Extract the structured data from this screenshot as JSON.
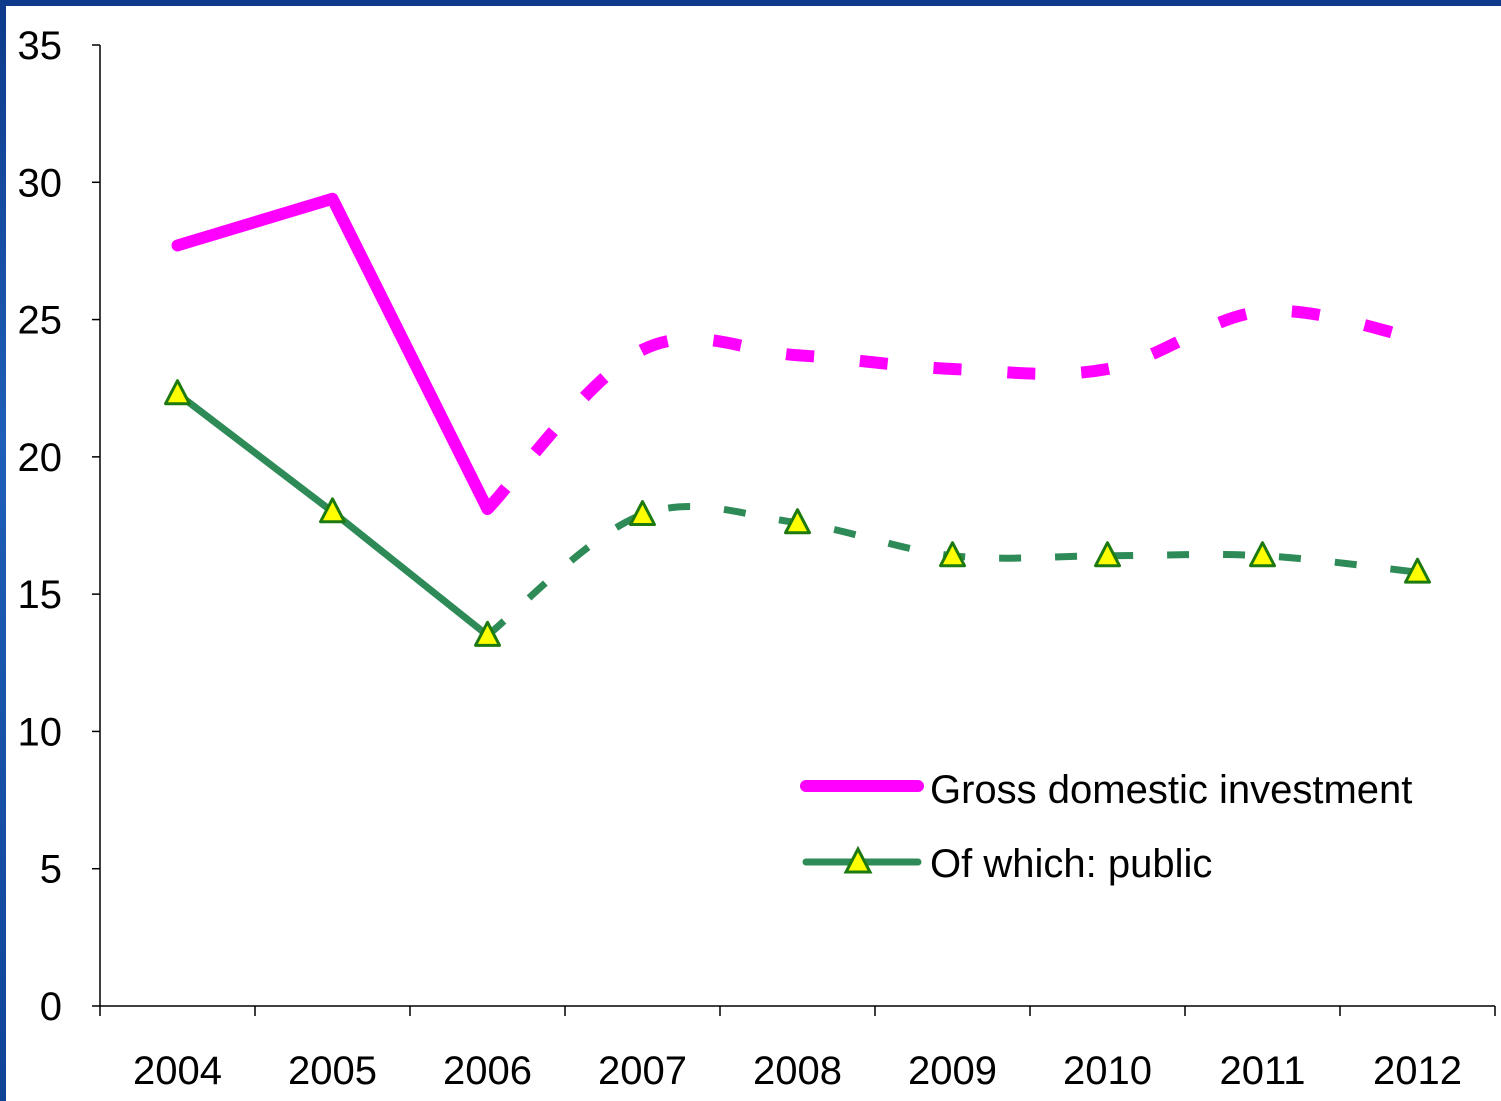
{
  "chart_data": {
    "type": "line",
    "title": "",
    "xlabel": "",
    "ylabel": "",
    "categories": [
      "2004",
      "2005",
      "2006",
      "2007",
      "2008",
      "2009",
      "2010",
      "2011",
      "2012"
    ],
    "ylim": [
      0,
      35
    ],
    "yticks": [
      "0",
      "5",
      "10",
      "15",
      "20",
      "25",
      "30",
      "35"
    ],
    "grid": false,
    "legend_position": "lower-right",
    "series": [
      {
        "name": "Gross domestic investment",
        "color": "#ff00ff",
        "marker": "none",
        "actual_through": "2006",
        "projection_style": "dashed",
        "values": [
          27.7,
          29.4,
          18.1,
          23.9,
          23.7,
          23.2,
          23.2,
          25.3,
          24.3
        ]
      },
      {
        "name": "Of which: public",
        "color": "#2e8b57",
        "marker": "triangle",
        "marker_fill": "#ffff00",
        "actual_through": "2006",
        "projection_style": "dashed",
        "values": [
          22.3,
          18.0,
          13.5,
          17.9,
          17.6,
          16.4,
          16.4,
          16.4,
          15.8
        ]
      }
    ]
  }
}
